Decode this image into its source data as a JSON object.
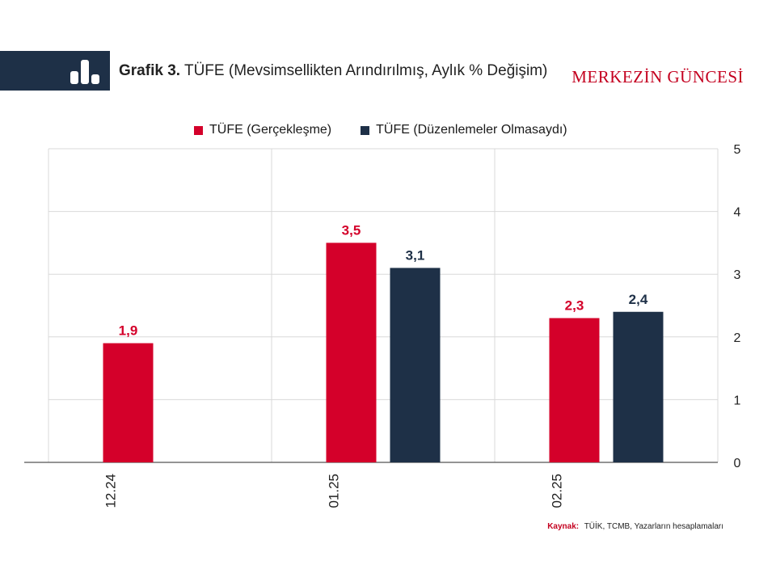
{
  "header": {
    "title_bold": "Grafik 3.",
    "title_rest": "TÜFE (Mevsimsellikten Arındırılmış, Aylık % Değişim)",
    "brand": "MERKEZİN GÜNCESİ",
    "icon": "bar-chart-icon"
  },
  "colors": {
    "series1": "#d4002a",
    "series2": "#1e3047",
    "band": "#1e3047",
    "grid": "#d9d9d9"
  },
  "source": {
    "label": "Kaynak:",
    "text": "TÜİK, TCMB, Yazarların hesaplamaları"
  },
  "chart_data": {
    "type": "bar",
    "categories": [
      "12.24",
      "01.25",
      "02.25"
    ],
    "series": [
      {
        "name": "TÜFE (Gerçekleşme)",
        "values": [
          1.9,
          3.5,
          2.3
        ],
        "labels": [
          "1,9",
          "3,5",
          "2,3"
        ]
      },
      {
        "name": "TÜFE (Düzenlemeler Olmasaydı)",
        "values": [
          null,
          3.1,
          2.4
        ],
        "labels": [
          "",
          "3,1",
          "2,4"
        ]
      }
    ],
    "ylim": [
      0,
      5
    ],
    "yticks": [
      "0",
      "1",
      "2",
      "3",
      "4",
      "5"
    ],
    "grid": true,
    "legend_position": "top",
    "y_axis_side": "right"
  }
}
